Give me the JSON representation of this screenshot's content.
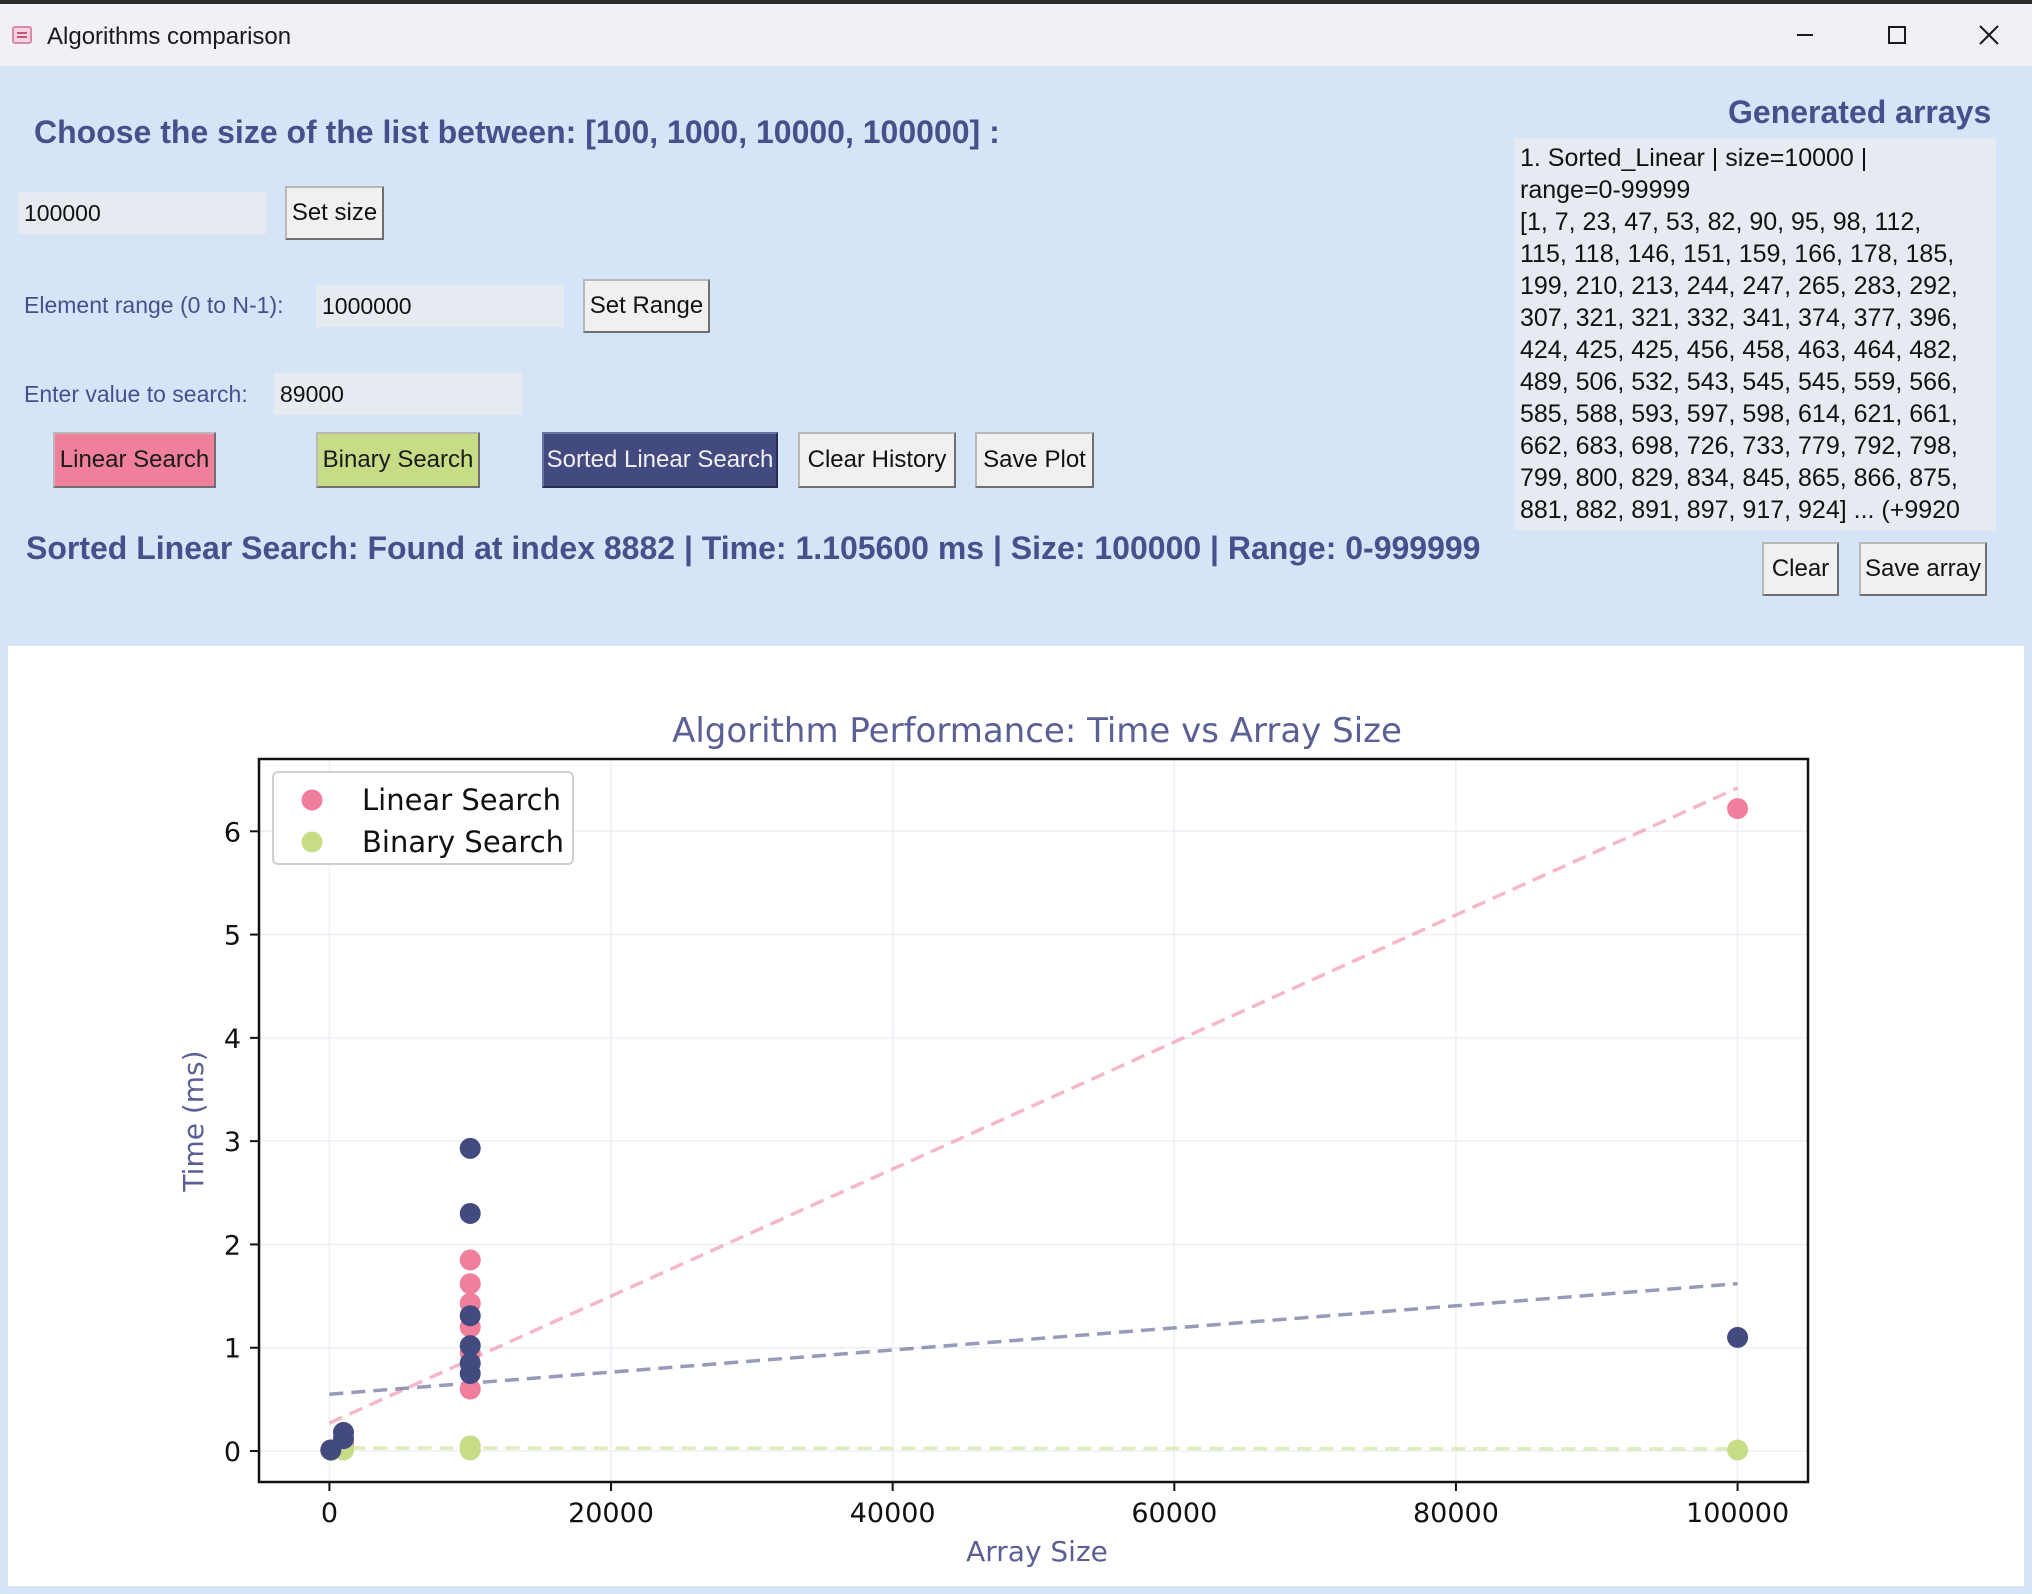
{
  "window": {
    "title": "Algorithms comparison"
  },
  "controls": {
    "heading": "Choose the size of the list between: [100, 1000, 10000, 100000] :",
    "size_value": "100000",
    "set_size_label": "Set size",
    "range_label": "Element range (0 to N-1):",
    "range_value": "1000000",
    "set_range_label": "Set Range",
    "search_label": "Enter value to search:",
    "search_value": "89000",
    "buttons": {
      "linear": "Linear Search",
      "binary": "Binary Search",
      "sorted": "Sorted Linear Search",
      "clear_history": "Clear History",
      "save_plot": "Save Plot"
    },
    "status": "Sorted Linear Search: Found at index 8882 | Time: 1.105600 ms | Size: 100000 | Range: 0-999999"
  },
  "arrays_panel": {
    "title": "Generated arrays",
    "lines": [
      "1. Sorted_Linear | size=10000 |",
      "range=0-99999",
      "[1, 7, 23, 47, 53, 82, 90, 95, 98, 112,",
      "115, 118, 146, 151, 159, 166, 178, 185,",
      "199, 210, 213, 244, 247, 265, 283, 292,",
      "307, 321, 321, 332, 341, 374, 377, 396,",
      "424, 425, 425, 456, 458, 463, 464, 482,",
      "489, 506, 532, 543, 545, 545, 559, 566,",
      "585, 588, 593, 597, 598, 614, 621, 661,",
      "662, 683, 698, 726, 733, 779, 792, 798,",
      "799, 800, 829, 834, 845, 865, 866, 875,",
      "881, 882, 891, 897, 917, 924] ... (+9920"
    ],
    "clear_label": "Clear",
    "save_label": "Save array"
  },
  "chart_data": {
    "type": "scatter",
    "title": "Algorithm Performance: Time vs Array Size",
    "xlabel": "Array Size",
    "ylabel": "Time (ms)",
    "xlim": [
      -5000,
      105000
    ],
    "ylim": [
      -0.3,
      6.7
    ],
    "xticks": [
      0,
      20000,
      40000,
      60000,
      80000,
      100000
    ],
    "yticks": [
      0,
      1,
      2,
      3,
      4,
      5,
      6
    ],
    "grid": true,
    "legend": "top-left",
    "series": [
      {
        "name": "Linear Search",
        "color": "#ef7f9b",
        "points": [
          [
            100,
            0.01
          ],
          [
            1000,
            0.05
          ],
          [
            1000,
            0.08
          ],
          [
            10000,
            0.6
          ],
          [
            10000,
            0.95
          ],
          [
            10000,
            1.2
          ],
          [
            10000,
            1.43
          ],
          [
            10000,
            1.62
          ],
          [
            10000,
            1.85
          ],
          [
            100000,
            6.22
          ]
        ],
        "trend": [
          [
            0,
            0.27
          ],
          [
            100000,
            6.42
          ]
        ]
      },
      {
        "name": "Binary Search",
        "color": "#c6dd86",
        "points": [
          [
            100,
            0.005
          ],
          [
            1000,
            0.01
          ],
          [
            1000,
            0.02
          ],
          [
            10000,
            0.01
          ],
          [
            10000,
            0.03
          ],
          [
            10000,
            0.05
          ],
          [
            100000,
            0.01
          ]
        ],
        "trend": [
          [
            0,
            0.03
          ],
          [
            100000,
            0.02
          ]
        ]
      },
      {
        "name": "",
        "color": "#434a80",
        "points": [
          [
            100,
            0.01
          ],
          [
            1000,
            0.12
          ],
          [
            1000,
            0.18
          ],
          [
            10000,
            0.75
          ],
          [
            10000,
            0.85
          ],
          [
            10000,
            1.02
          ],
          [
            10000,
            1.31
          ],
          [
            10000,
            2.3
          ],
          [
            10000,
            2.93
          ],
          [
            100000,
            1.1
          ]
        ],
        "trend": [
          [
            0,
            0.55
          ],
          [
            100000,
            1.62
          ]
        ]
      }
    ]
  }
}
